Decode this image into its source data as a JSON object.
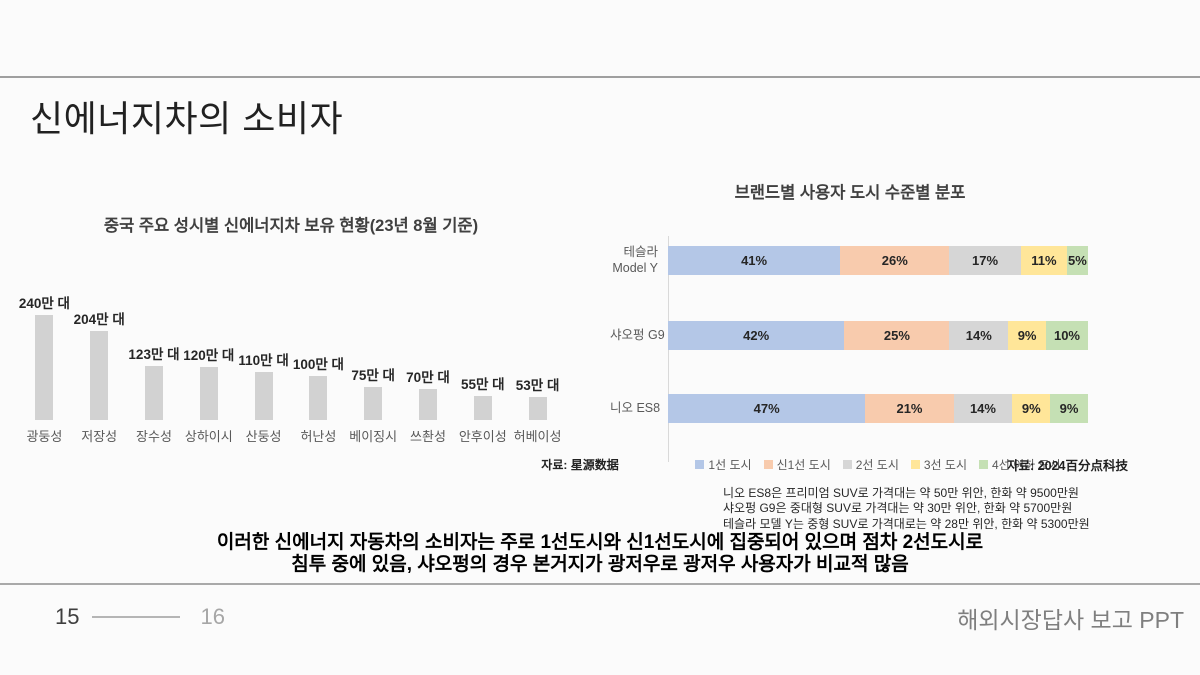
{
  "header": {
    "title": "신에너지차의 소비자"
  },
  "chart_data": [
    {
      "type": "bar",
      "title": "중국 주요 성시별 신에너지차 보유 현황(23년 8월 기준)",
      "categories": [
        "광둥성",
        "저장성",
        "장수성",
        "상하이시",
        "산둥성",
        "허난성",
        "베이징시",
        "쓰촨성",
        "안후이성",
        "허베이성"
      ],
      "values": [
        240,
        204,
        123,
        120,
        110,
        100,
        75,
        70,
        55,
        53
      ],
      "value_labels": [
        "240만 대",
        "204만 대",
        "123만 대",
        "120만 대",
        "110만 대",
        "100만 대",
        "75만 대",
        "70만 대",
        "55만 대",
        "53만 대"
      ],
      "unit": "만 대",
      "ylim": [
        0,
        240
      ],
      "grid": false,
      "legend": false,
      "bar_color": "#d2d2d2",
      "source": "자료: 星源数据"
    },
    {
      "type": "stacked_bar_horizontal",
      "title": "브랜드별 사용자 도시 수준별 분포",
      "categories": [
        [
          "테슬라",
          "Model Y"
        ],
        [
          "샤오펑 G9"
        ],
        [
          "니오 ES8"
        ]
      ],
      "series": [
        {
          "name": "1선 도시",
          "color": "#b4c7e7",
          "values": [
            41,
            42,
            47
          ]
        },
        {
          "name": "신1선 도시",
          "color": "#f8cbad",
          "values": [
            26,
            25,
            21
          ]
        },
        {
          "name": "2선 도시",
          "color": "#d6d6d6",
          "values": [
            17,
            14,
            14
          ]
        },
        {
          "name": "3선 도시",
          "color": "#ffe699",
          "values": [
            11,
            9,
            9
          ]
        },
        {
          "name": "4선 이하 도시",
          "color": "#c5e0b4",
          "values": [
            5,
            10,
            9
          ]
        }
      ],
      "unit": "%",
      "xlim": [
        0,
        100
      ],
      "legend_position": "bottom",
      "source": "자료: 2024百分点科技",
      "notes": [
        "니오 ES8은 프리미엄 SUV로 가격대는 약 50만 위안, 한화 약 9500만원",
        "샤오펑 G9은 중대형 SUV로 가격대는 약 30만 위안, 한화 약 5700만원",
        "테슬라 모델 Y는 중형 SUV로 가격대로는 약 28만 위안, 한화 약 5300만원"
      ]
    }
  ],
  "message": {
    "line1": "이러한 신에너지 자동차의 소비자는 주로 1선도시와 신1선도시에 집중되어 있으며 점차 2선도시로",
    "line2": "침투 중에 있음, 샤오펑의 경우 본거지가 광저우로 광저우 사용자가 비교적 많음"
  },
  "footer": {
    "page_current": "15",
    "page_next": "16",
    "report_title": "해외시장답사 보고 PPT"
  }
}
